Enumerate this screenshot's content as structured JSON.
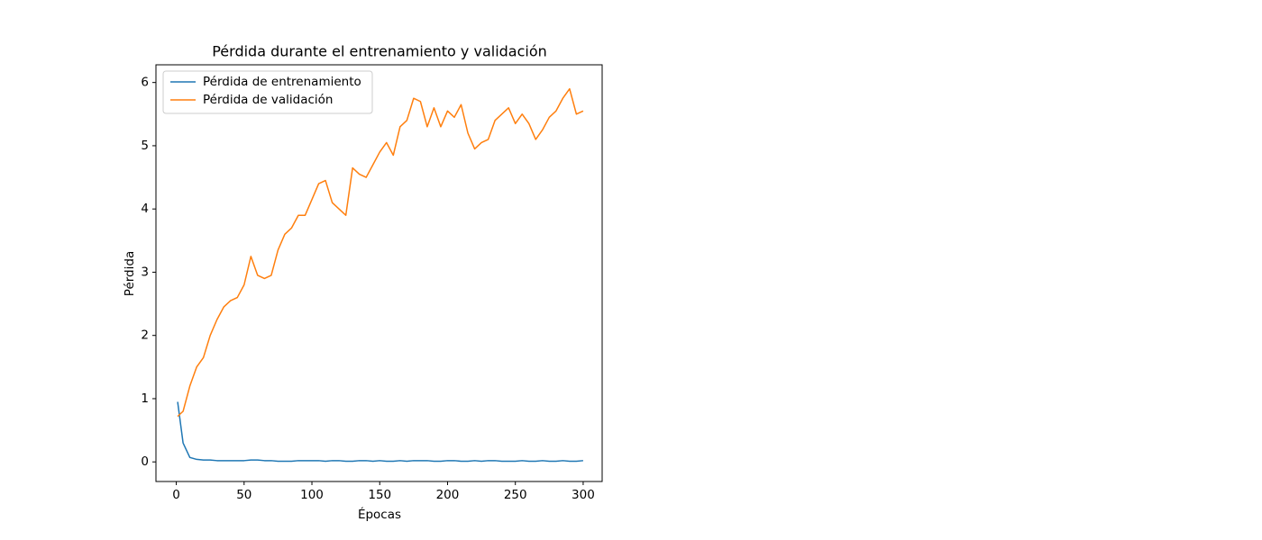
{
  "chart_data": {
    "type": "line",
    "title": "Pérdida durante el entrenamiento y validación",
    "xlabel": "Épocas",
    "ylabel": "Pérdida",
    "x": [
      1,
      5,
      10,
      15,
      20,
      25,
      30,
      35,
      40,
      45,
      50,
      55,
      60,
      65,
      70,
      75,
      80,
      85,
      90,
      95,
      100,
      105,
      110,
      115,
      120,
      125,
      130,
      135,
      140,
      145,
      150,
      155,
      160,
      165,
      170,
      175,
      180,
      185,
      190,
      195,
      200,
      205,
      210,
      215,
      220,
      225,
      230,
      235,
      240,
      245,
      250,
      255,
      260,
      265,
      270,
      275,
      280,
      285,
      290,
      295,
      300
    ],
    "series": [
      {
        "name": "Pérdida de entrenamiento",
        "color": "#1f77b4",
        "values": [
          0.95,
          0.3,
          0.07,
          0.04,
          0.03,
          0.03,
          0.02,
          0.02,
          0.02,
          0.02,
          0.02,
          0.03,
          0.03,
          0.02,
          0.02,
          0.01,
          0.01,
          0.01,
          0.02,
          0.02,
          0.02,
          0.02,
          0.01,
          0.02,
          0.02,
          0.01,
          0.01,
          0.02,
          0.02,
          0.01,
          0.02,
          0.01,
          0.01,
          0.02,
          0.01,
          0.02,
          0.02,
          0.02,
          0.01,
          0.01,
          0.02,
          0.02,
          0.01,
          0.01,
          0.02,
          0.01,
          0.02,
          0.02,
          0.01,
          0.01,
          0.01,
          0.02,
          0.01,
          0.01,
          0.02,
          0.01,
          0.01,
          0.02,
          0.01,
          0.01,
          0.02
        ]
      },
      {
        "name": "Pérdida de validación",
        "color": "#ff7f0e",
        "values": [
          0.72,
          0.8,
          1.2,
          1.5,
          1.65,
          2.0,
          2.25,
          2.45,
          2.55,
          2.6,
          2.8,
          3.25,
          2.95,
          2.9,
          2.95,
          3.35,
          3.6,
          3.7,
          3.9,
          3.9,
          4.15,
          4.4,
          4.45,
          4.1,
          4.0,
          3.9,
          4.65,
          4.55,
          4.5,
          4.7,
          4.9,
          5.05,
          4.85,
          5.3,
          5.4,
          5.75,
          5.7,
          5.3,
          5.6,
          5.3,
          5.55,
          5.45,
          5.65,
          5.2,
          4.95,
          5.05,
          5.1,
          5.4,
          5.5,
          5.6,
          5.35,
          5.5,
          5.35,
          5.1,
          5.25,
          5.45,
          5.55,
          5.75,
          5.9,
          5.5,
          5.55
        ]
      }
    ],
    "xlim": [
      -15,
      314
    ],
    "ylim": [
      -0.31,
      6.28
    ],
    "xticks": [
      0,
      50,
      100,
      150,
      200,
      250,
      300
    ],
    "yticks": [
      0,
      1,
      2,
      3,
      4,
      5,
      6
    ],
    "legend": "upper left"
  }
}
